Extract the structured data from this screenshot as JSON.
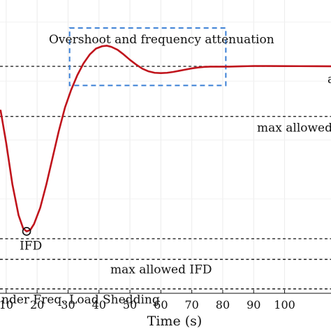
{
  "chart_data": {
    "type": "line",
    "xlabel": "Time (s)",
    "ylabel": "",
    "title": "",
    "xlim": [
      8,
      115
    ],
    "ylim": [
      -0.02,
      0.975
    ],
    "grid": true,
    "x_ticks": [
      10,
      20,
      30,
      40,
      50,
      60,
      70,
      80,
      90,
      100
    ],
    "series": [
      {
        "color": "#c0141c",
        "x": [
          8.2,
          10,
          12,
          14,
          15.5,
          16.6,
          17.8,
          19,
          21,
          23,
          25,
          27,
          29,
          31,
          33,
          35,
          37,
          39,
          41,
          42.5,
          44,
          46,
          48,
          50,
          52,
          54,
          56,
          58,
          60,
          62,
          64,
          66,
          68,
          70,
          72,
          74,
          76,
          78,
          80,
          82,
          84,
          86,
          88,
          90,
          95,
          100,
          105,
          110,
          115
        ],
        "y": [
          0.6,
          0.49,
          0.35,
          0.245,
          0.2,
          0.19,
          0.195,
          0.215,
          0.27,
          0.35,
          0.44,
          0.53,
          0.61,
          0.67,
          0.72,
          0.76,
          0.79,
          0.81,
          0.818,
          0.82,
          0.816,
          0.806,
          0.79,
          0.772,
          0.756,
          0.742,
          0.733,
          0.728,
          0.727,
          0.728,
          0.731,
          0.735,
          0.739,
          0.743,
          0.746,
          0.748,
          0.749,
          0.749,
          0.749,
          0.749,
          0.7495,
          0.75,
          0.7505,
          0.751,
          0.751,
          0.7508,
          0.7505,
          0.7503,
          0.75
        ]
      }
    ],
    "markers": [
      {
        "label": "IFD",
        "x": 16.6,
        "y": 0.19
      }
    ],
    "reference_lines": [
      {
        "y": 0.75,
        "label": ""
      },
      {
        "y": 0.58,
        "label": "max allowed"
      },
      {
        "y": 0.165,
        "label": ""
      },
      {
        "y": 0.095,
        "label": "max allowed IFD"
      },
      {
        "y": -0.005,
        "label": "nder Freq. Load Shedding"
      }
    ],
    "annotation_box": {
      "label": "Overshoot and frequency attenuation",
      "x": [
        30.5,
        81
      ],
      "y": [
        0.685,
        0.88
      ]
    },
    "edge_text": "a"
  }
}
